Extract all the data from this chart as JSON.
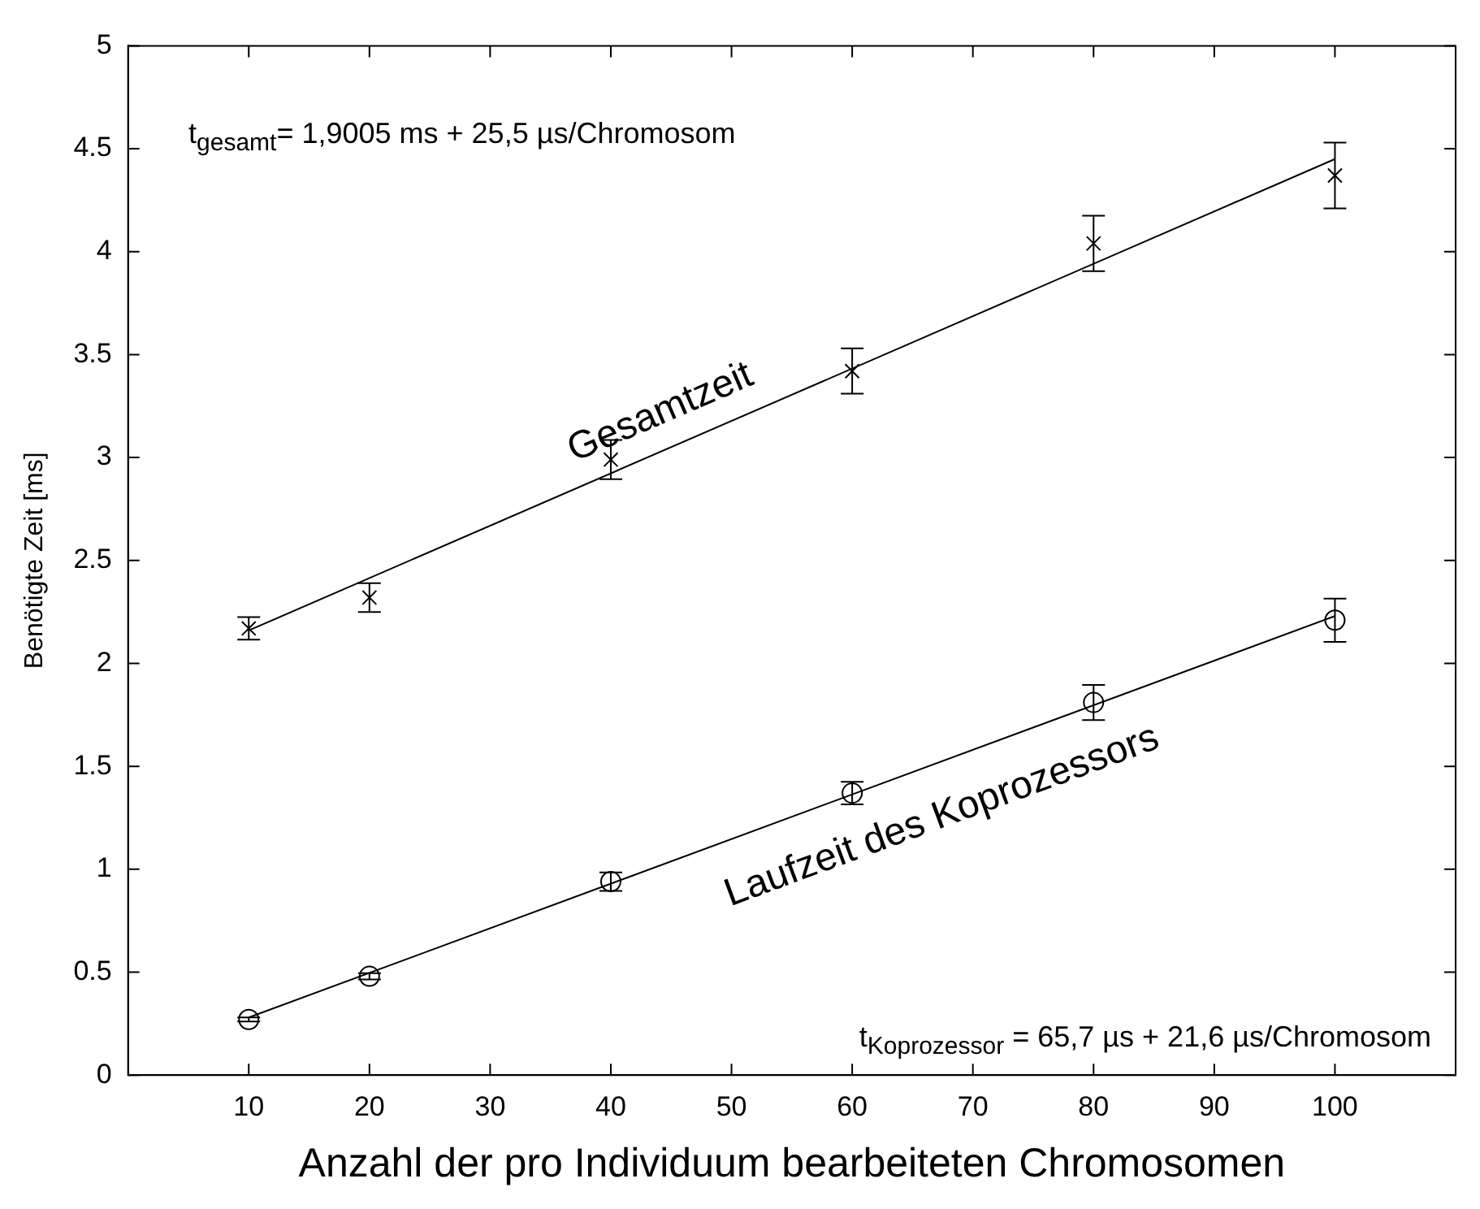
{
  "chart_data": {
    "type": "scatter",
    "xlabel": "Anzahl der pro Individuum bearbeiteten Chromosomen",
    "ylabel": "Benötigte Zeit [ms]",
    "xlim": [
      0,
      110
    ],
    "xticks": [
      10,
      20,
      30,
      40,
      50,
      60,
      70,
      80,
      90,
      100
    ],
    "ylim": [
      0,
      5
    ],
    "yticks": [
      0,
      0.5,
      1,
      1.5,
      2,
      2.5,
      3,
      3.5,
      4,
      4.5,
      5
    ],
    "annotations": [
      "t$_{gesamt}$= 1,9005 ms + 25,5 µs/Chromosom",
      "t$_{Koprozessor}$ = 65,7 µs + 21,6 µs/Chromosom"
    ],
    "series": [
      {
        "marker": "cross",
        "color": "#000000",
        "x": [
          10,
          20,
          40,
          60,
          80,
          100
        ],
        "values": [
          2.17,
          2.32,
          2.99,
          3.42,
          4.04,
          4.37
        ],
        "errors": [
          0.055,
          0.07,
          0.095,
          0.11,
          0.135,
          0.16
        ]
      },
      {
        "type": "line",
        "name": "Gesamtzeit",
        "marker": "none",
        "color": "#000000",
        "x": [
          10,
          100
        ],
        "values": [
          2.16,
          4.45
        ]
      },
      {
        "marker": "circle",
        "color": "#000000",
        "x": [
          10,
          20,
          40,
          60,
          80,
          100
        ],
        "values": [
          0.27,
          0.48,
          0.94,
          1.37,
          1.81,
          2.21
        ],
        "errors": [
          0.01,
          0.015,
          0.045,
          0.055,
          0.085,
          0.105
        ]
      },
      {
        "type": "line",
        "name": "Laufzeit des Koprozessors",
        "marker": "none",
        "color": "#000000",
        "x": [
          10,
          100
        ],
        "values": [
          0.28,
          2.23
        ]
      }
    ]
  }
}
